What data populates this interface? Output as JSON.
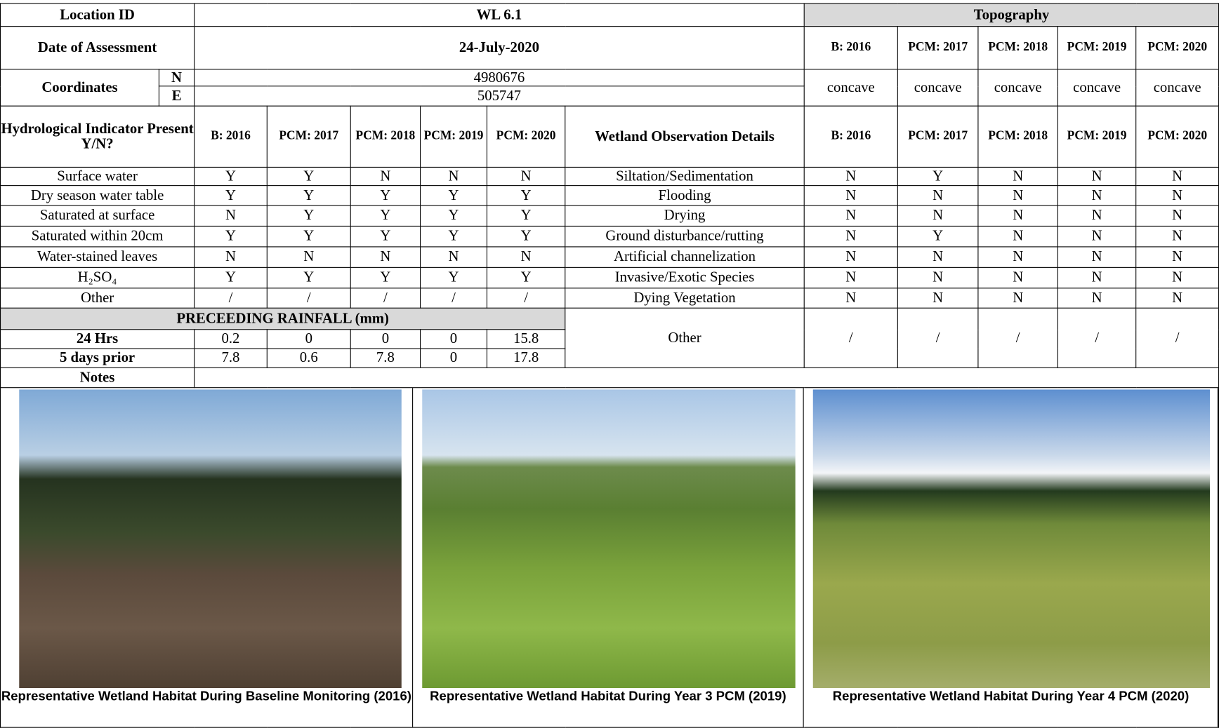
{
  "location_id": {
    "label": "Location ID",
    "value": "WL 6.1"
  },
  "date": {
    "label": "Date of Assessment",
    "value": "24-July-2020"
  },
  "coordinates": {
    "label": "Coordinates",
    "n_label": "N",
    "n": "4980676",
    "e_label": "E",
    "e": "505747"
  },
  "topography": {
    "label": "Topography",
    "years": [
      "B: 2016",
      "PCM: 2017",
      "PCM: 2018",
      "PCM: 2019",
      "PCM: 2020"
    ],
    "values": [
      "concave",
      "concave",
      "concave",
      "concave",
      "concave"
    ]
  },
  "hydro": {
    "header": "Hydrological Indicator Present Y/N?",
    "years": [
      "B: 2016",
      "PCM: 2017",
      "PCM: 2018",
      "PCM: 2019",
      "PCM: 2020"
    ],
    "rows": [
      {
        "label": "Surface water",
        "values": [
          "Y",
          "Y",
          "N",
          "N",
          "N"
        ]
      },
      {
        "label": "Dry season water table",
        "values": [
          "Y",
          "Y",
          "Y",
          "Y",
          "Y"
        ]
      },
      {
        "label": "Saturated at surface",
        "values": [
          "N",
          "Y",
          "Y",
          "Y",
          "Y"
        ]
      },
      {
        "label": "Saturated within 20cm",
        "values": [
          "Y",
          "Y",
          "Y",
          "Y",
          "Y"
        ]
      },
      {
        "label": "Water-stained leaves",
        "values": [
          "N",
          "N",
          "N",
          "N",
          "N"
        ]
      },
      {
        "label": "H₂SO₄",
        "values": [
          "Y",
          "Y",
          "Y",
          "Y",
          "Y"
        ]
      },
      {
        "label": "Other",
        "values": [
          "/",
          "/",
          "/",
          "/",
          "/"
        ]
      }
    ]
  },
  "wetland": {
    "header": "Wetland Observation Details",
    "years": [
      "B: 2016",
      "PCM: 2017",
      "PCM: 2018",
      "PCM: 2019",
      "PCM: 2020"
    ],
    "rows": [
      {
        "label": "Siltation/Sedimentation",
        "values": [
          "N",
          "Y",
          "N",
          "N",
          "N"
        ]
      },
      {
        "label": "Flooding",
        "values": [
          "N",
          "N",
          "N",
          "N",
          "N"
        ]
      },
      {
        "label": "Drying",
        "values": [
          "N",
          "N",
          "N",
          "N",
          "N"
        ]
      },
      {
        "label": "Ground disturbance/rutting",
        "values": [
          "N",
          "Y",
          "N",
          "N",
          "N"
        ]
      },
      {
        "label": "Artificial channelization",
        "values": [
          "N",
          "N",
          "N",
          "N",
          "N"
        ]
      },
      {
        "label": "Invasive/Exotic Species",
        "values": [
          "N",
          "N",
          "N",
          "N",
          "N"
        ]
      },
      {
        "label": "Dying Vegetation",
        "values": [
          "N",
          "N",
          "N",
          "N",
          "N"
        ]
      }
    ],
    "other_label": "Other",
    "other_values": [
      "/",
      "/",
      "/",
      "/",
      "/"
    ]
  },
  "rainfall": {
    "header": "PRECEEDING RAINFALL (mm)",
    "rows": [
      {
        "label": "24 Hrs",
        "values": [
          "0.2",
          "0",
          "0",
          "0",
          "15.8"
        ]
      },
      {
        "label": "5 days prior",
        "values": [
          "7.8",
          "0.6",
          "7.8",
          "0",
          "17.8"
        ]
      }
    ]
  },
  "notes": {
    "label": "Notes"
  },
  "photos": [
    {
      "caption": "Representative Wetland Habitat During Baseline Monitoring (2016)"
    },
    {
      "caption": "Representative Wetland Habitat During Year 3 PCM (2019)"
    },
    {
      "caption": "Representative Wetland Habitat During Year 4 PCM (2020)"
    }
  ]
}
